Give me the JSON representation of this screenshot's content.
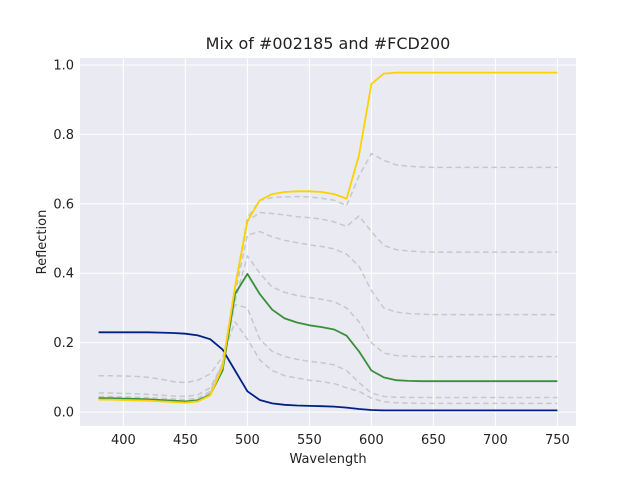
{
  "chart_data": {
    "type": "line",
    "title": "Mix of #002185 and #FCD200",
    "xlabel": "Wavelength",
    "ylabel": "Reflection",
    "xlim": [
      365,
      765
    ],
    "ylim": [
      -0.04,
      1.02
    ],
    "xticks": [
      400,
      450,
      500,
      550,
      600,
      650,
      700,
      750
    ],
    "yticks": [
      0.0,
      0.2,
      0.4,
      0.6,
      0.8,
      1.0
    ],
    "grid": true,
    "background": "#EAEAF2",
    "x": [
      380,
      390,
      400,
      410,
      420,
      430,
      440,
      450,
      460,
      470,
      480,
      490,
      500,
      510,
      520,
      530,
      540,
      550,
      560,
      570,
      580,
      590,
      600,
      610,
      620,
      630,
      640,
      650,
      660,
      670,
      680,
      690,
      700,
      710,
      720,
      730,
      740,
      750
    ],
    "series": [
      {
        "role": "blue-endpoint",
        "color": "#002185",
        "dashed": false,
        "values": [
          0.23,
          0.23,
          0.23,
          0.23,
          0.23,
          0.229,
          0.228,
          0.226,
          0.221,
          0.21,
          0.18,
          0.12,
          0.06,
          0.035,
          0.025,
          0.021,
          0.019,
          0.018,
          0.017,
          0.016,
          0.013,
          0.009,
          0.006,
          0.005,
          0.005,
          0.005,
          0.005,
          0.005,
          0.005,
          0.005,
          0.005,
          0.005,
          0.005,
          0.005,
          0.005,
          0.005,
          0.005,
          0.005
        ]
      },
      {
        "role": "mix-1",
        "color": "#c8c8c8",
        "dashed": true,
        "values": [
          0.105,
          0.105,
          0.104,
          0.103,
          0.1,
          0.095,
          0.088,
          0.085,
          0.092,
          0.11,
          0.16,
          0.26,
          0.21,
          0.15,
          0.12,
          0.105,
          0.098,
          0.092,
          0.088,
          0.082,
          0.07,
          0.06,
          0.04,
          0.03,
          0.027,
          0.026,
          0.025,
          0.025,
          0.025,
          0.025,
          0.025,
          0.025,
          0.025,
          0.025,
          0.025,
          0.025,
          0.025,
          0.025
        ]
      },
      {
        "role": "mix-2",
        "color": "#c8c8c8",
        "dashed": true,
        "values": [
          0.055,
          0.055,
          0.054,
          0.053,
          0.051,
          0.049,
          0.046,
          0.045,
          0.05,
          0.07,
          0.14,
          0.31,
          0.3,
          0.21,
          0.175,
          0.16,
          0.152,
          0.146,
          0.142,
          0.136,
          0.12,
          0.085,
          0.055,
          0.045,
          0.043,
          0.042,
          0.042,
          0.042,
          0.042,
          0.042,
          0.042,
          0.042,
          0.042,
          0.042,
          0.042,
          0.042,
          0.042,
          0.042
        ]
      },
      {
        "role": "mix-3",
        "color": "#c8c8c8",
        "dashed": true,
        "values": [
          0.045,
          0.045,
          0.044,
          0.043,
          0.042,
          0.04,
          0.038,
          0.036,
          0.04,
          0.06,
          0.14,
          0.32,
          0.45,
          0.4,
          0.36,
          0.345,
          0.336,
          0.33,
          0.325,
          0.318,
          0.3,
          0.26,
          0.2,
          0.17,
          0.163,
          0.161,
          0.16,
          0.16,
          0.16,
          0.16,
          0.16,
          0.16,
          0.16,
          0.16,
          0.16,
          0.16,
          0.16,
          0.16
        ]
      },
      {
        "role": "mix-4",
        "color": "#c8c8c8",
        "dashed": true,
        "values": [
          0.04,
          0.04,
          0.039,
          0.038,
          0.037,
          0.035,
          0.033,
          0.031,
          0.035,
          0.055,
          0.14,
          0.34,
          0.51,
          0.52,
          0.505,
          0.495,
          0.488,
          0.482,
          0.477,
          0.47,
          0.455,
          0.42,
          0.35,
          0.3,
          0.288,
          0.284,
          0.282,
          0.281,
          0.281,
          0.281,
          0.281,
          0.281,
          0.281,
          0.281,
          0.281,
          0.281,
          0.281,
          0.281
        ]
      },
      {
        "role": "mix-5",
        "color": "#c8c8c8",
        "dashed": true,
        "values": [
          0.038,
          0.038,
          0.037,
          0.036,
          0.035,
          0.033,
          0.031,
          0.029,
          0.033,
          0.052,
          0.14,
          0.35,
          0.55,
          0.575,
          0.572,
          0.568,
          0.563,
          0.56,
          0.556,
          0.548,
          0.535,
          0.565,
          0.52,
          0.48,
          0.468,
          0.464,
          0.462,
          0.461,
          0.461,
          0.461,
          0.461,
          0.461,
          0.461,
          0.461,
          0.461,
          0.461,
          0.461,
          0.461
        ]
      },
      {
        "role": "mix-6",
        "color": "#c8c8c8",
        "dashed": true,
        "values": [
          0.037,
          0.037,
          0.036,
          0.035,
          0.034,
          0.032,
          0.03,
          0.028,
          0.032,
          0.05,
          0.14,
          0.36,
          0.56,
          0.61,
          0.618,
          0.62,
          0.621,
          0.62,
          0.616,
          0.61,
          0.595,
          0.68,
          0.745,
          0.725,
          0.712,
          0.708,
          0.706,
          0.705,
          0.705,
          0.705,
          0.705,
          0.705,
          0.705,
          0.705,
          0.705,
          0.705,
          0.705,
          0.705
        ]
      },
      {
        "role": "mix-green",
        "color": "#3a8f3a",
        "dashed": false,
        "values": [
          0.04,
          0.04,
          0.039,
          0.038,
          0.037,
          0.035,
          0.033,
          0.031,
          0.034,
          0.05,
          0.12,
          0.34,
          0.398,
          0.34,
          0.295,
          0.27,
          0.258,
          0.25,
          0.245,
          0.238,
          0.22,
          0.175,
          0.12,
          0.1,
          0.092,
          0.09,
          0.089,
          0.089,
          0.089,
          0.089,
          0.089,
          0.089,
          0.089,
          0.089,
          0.089,
          0.089,
          0.089,
          0.089
        ]
      },
      {
        "role": "yellow-endpoint",
        "color": "#FCD200",
        "dashed": false,
        "values": [
          0.036,
          0.036,
          0.035,
          0.034,
          0.033,
          0.031,
          0.029,
          0.027,
          0.031,
          0.048,
          0.13,
          0.36,
          0.55,
          0.61,
          0.628,
          0.634,
          0.636,
          0.636,
          0.634,
          0.628,
          0.615,
          0.74,
          0.945,
          0.975,
          0.978,
          0.978,
          0.978,
          0.978,
          0.978,
          0.978,
          0.978,
          0.978,
          0.978,
          0.978,
          0.978,
          0.978,
          0.978,
          0.978
        ]
      }
    ]
  }
}
